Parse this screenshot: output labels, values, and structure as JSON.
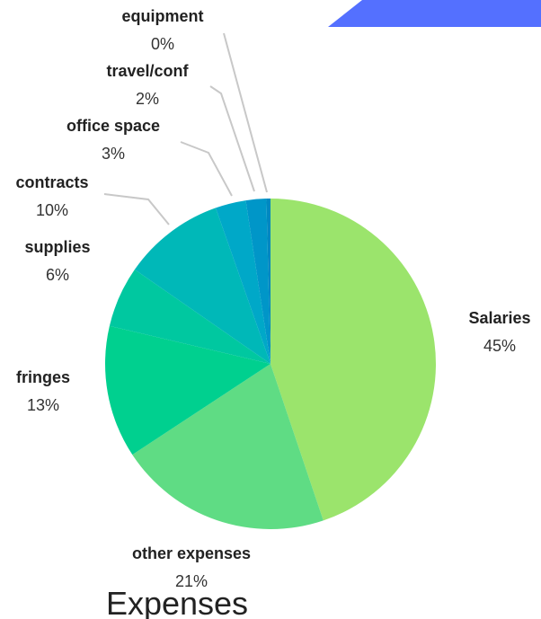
{
  "chart_data": {
    "type": "pie",
    "title": "Expenses",
    "slices": [
      {
        "label": "Salaries",
        "value": 45,
        "pct_label": "45%",
        "color": "#9be46c"
      },
      {
        "label": "other expenses",
        "value": 21,
        "pct_label": "21%",
        "color": "#5fdc84"
      },
      {
        "label": "fringes",
        "value": 13,
        "pct_label": "13%",
        "color": "#00d08f"
      },
      {
        "label": "supplies",
        "value": 6,
        "pct_label": "6%",
        "color": "#00c8a0"
      },
      {
        "label": "contracts",
        "value": 10,
        "pct_label": "10%",
        "color": "#00b8b8"
      },
      {
        "label": "office space",
        "value": 3,
        "pct_label": "3%",
        "color": "#00a8c8"
      },
      {
        "label": "travel/conf",
        "value": 2,
        "pct_label": "2%",
        "color": "#0096c8"
      },
      {
        "label": "equipment",
        "value": 0.4,
        "pct_label": "0%",
        "color": "#0088c0"
      }
    ]
  },
  "decoration": {
    "banner_color": "#5470ff"
  }
}
